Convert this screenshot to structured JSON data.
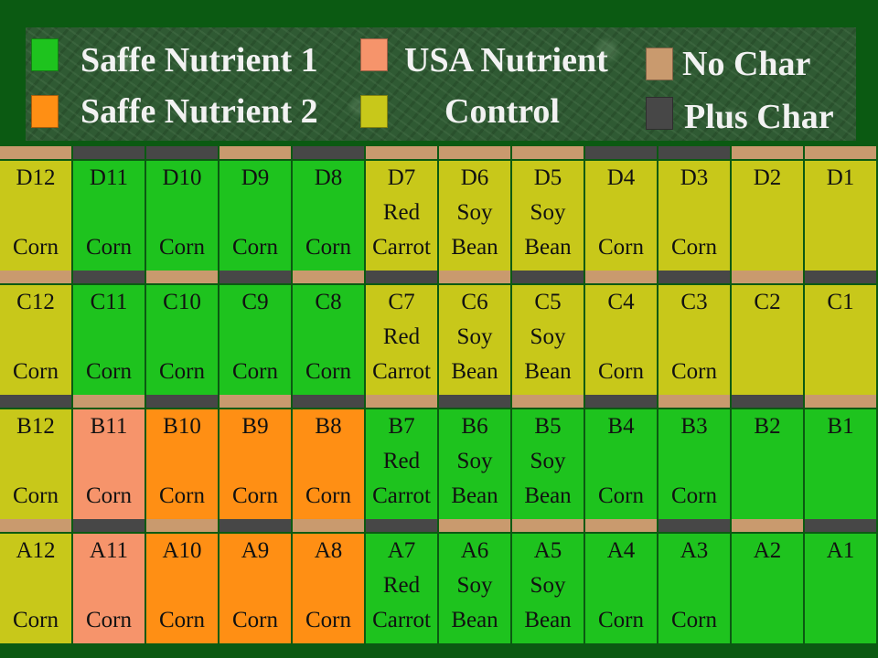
{
  "colors": {
    "saffe1": "#1ec31e",
    "saffe2": "#ff8f14",
    "usa": "#f6946b",
    "control": "#c8c81a",
    "no_char": "#c99a6e",
    "plus_char": "#474747",
    "background": "#0b5a12"
  },
  "legend": {
    "saffe1": "Saffe Nutrient 1",
    "saffe2": "Saffe Nutrient 2",
    "usa": "USA Nutrient",
    "control": "Control",
    "no_char": "No Char",
    "plus_char": "Plus Char"
  },
  "rows": [
    {
      "id": "D",
      "char": [
        "no_char",
        "plus_char",
        "plus_char",
        "no_char",
        "plus_char",
        "no_char",
        "no_char",
        "no_char",
        "plus_char",
        "plus_char",
        "no_char",
        "no_char"
      ],
      "cells": [
        {
          "id": "D12",
          "treatment": "control",
          "crop1": "",
          "crop2": "Corn"
        },
        {
          "id": "D11",
          "treatment": "saffe1",
          "crop1": "",
          "crop2": "Corn"
        },
        {
          "id": "D10",
          "treatment": "saffe1",
          "crop1": "",
          "crop2": "Corn"
        },
        {
          "id": "D9",
          "treatment": "saffe1",
          "crop1": "",
          "crop2": "Corn"
        },
        {
          "id": "D8",
          "treatment": "saffe1",
          "crop1": "",
          "crop2": "Corn"
        },
        {
          "id": "D7",
          "treatment": "control",
          "crop1": "Red",
          "crop2": "Carrot"
        },
        {
          "id": "D6",
          "treatment": "control",
          "crop1": "Soy",
          "crop2": "Bean"
        },
        {
          "id": "D5",
          "treatment": "control",
          "crop1": "Soy",
          "crop2": "Bean"
        },
        {
          "id": "D4",
          "treatment": "control",
          "crop1": "",
          "crop2": "Corn"
        },
        {
          "id": "D3",
          "treatment": "control",
          "crop1": "",
          "crop2": "Corn"
        },
        {
          "id": "D2",
          "treatment": "control",
          "crop1": "",
          "crop2": ""
        },
        {
          "id": "D1",
          "treatment": "control",
          "crop1": "",
          "crop2": ""
        }
      ]
    },
    {
      "id": "C",
      "char": [
        "no_char",
        "plus_char",
        "no_char",
        "plus_char",
        "no_char",
        "plus_char",
        "no_char",
        "plus_char",
        "no_char",
        "plus_char",
        "no_char",
        "plus_char"
      ],
      "cells": [
        {
          "id": "C12",
          "treatment": "control",
          "crop1": "",
          "crop2": "Corn"
        },
        {
          "id": "C11",
          "treatment": "saffe1",
          "crop1": "",
          "crop2": "Corn"
        },
        {
          "id": "C10",
          "treatment": "saffe1",
          "crop1": "",
          "crop2": "Corn"
        },
        {
          "id": "C9",
          "treatment": "saffe1",
          "crop1": "",
          "crop2": "Corn"
        },
        {
          "id": "C8",
          "treatment": "saffe1",
          "crop1": "",
          "crop2": "Corn"
        },
        {
          "id": "C7",
          "treatment": "control",
          "crop1": "Red",
          "crop2": "Carrot"
        },
        {
          "id": "C6",
          "treatment": "control",
          "crop1": "Soy",
          "crop2": "Bean"
        },
        {
          "id": "C5",
          "treatment": "control",
          "crop1": "Soy",
          "crop2": "Bean"
        },
        {
          "id": "C4",
          "treatment": "control",
          "crop1": "",
          "crop2": "Corn"
        },
        {
          "id": "C3",
          "treatment": "control",
          "crop1": "",
          "crop2": "Corn"
        },
        {
          "id": "C2",
          "treatment": "control",
          "crop1": "",
          "crop2": ""
        },
        {
          "id": "C1",
          "treatment": "control",
          "crop1": "",
          "crop2": ""
        }
      ]
    },
    {
      "id": "B",
      "char": [
        "plus_char",
        "no_char",
        "plus_char",
        "no_char",
        "plus_char",
        "no_char",
        "plus_char",
        "no_char",
        "plus_char",
        "no_char",
        "plus_char",
        "no_char"
      ],
      "cells": [
        {
          "id": "B12",
          "treatment": "control",
          "crop1": "",
          "crop2": "Corn"
        },
        {
          "id": "B11",
          "treatment": "usa",
          "crop1": "",
          "crop2": "Corn"
        },
        {
          "id": "B10",
          "treatment": "saffe2",
          "crop1": "",
          "crop2": "Corn"
        },
        {
          "id": "B9",
          "treatment": "saffe2",
          "crop1": "",
          "crop2": "Corn"
        },
        {
          "id": "B8",
          "treatment": "saffe2",
          "crop1": "",
          "crop2": "Corn"
        },
        {
          "id": "B7",
          "treatment": "saffe1",
          "crop1": "Red",
          "crop2": "Carrot"
        },
        {
          "id": "B6",
          "treatment": "saffe1",
          "crop1": "Soy",
          "crop2": "Bean"
        },
        {
          "id": "B5",
          "treatment": "saffe1",
          "crop1": "Soy",
          "crop2": "Bean"
        },
        {
          "id": "B4",
          "treatment": "saffe1",
          "crop1": "",
          "crop2": "Corn"
        },
        {
          "id": "B3",
          "treatment": "saffe1",
          "crop1": "",
          "crop2": "Corn"
        },
        {
          "id": "B2",
          "treatment": "saffe1",
          "crop1": "",
          "crop2": ""
        },
        {
          "id": "B1",
          "treatment": "saffe1",
          "crop1": "",
          "crop2": ""
        }
      ]
    },
    {
      "id": "A",
      "char": [
        "no_char",
        "plus_char",
        "no_char",
        "plus_char",
        "no_char",
        "plus_char",
        "no_char",
        "no_char",
        "no_char",
        "plus_char",
        "no_char",
        "plus_char"
      ],
      "cells": [
        {
          "id": "A12",
          "treatment": "control",
          "crop1": "",
          "crop2": "Corn"
        },
        {
          "id": "A11",
          "treatment": "usa",
          "crop1": "",
          "crop2": "Corn"
        },
        {
          "id": "A10",
          "treatment": "saffe2",
          "crop1": "",
          "crop2": "Corn"
        },
        {
          "id": "A9",
          "treatment": "saffe2",
          "crop1": "",
          "crop2": "Corn"
        },
        {
          "id": "A8",
          "treatment": "saffe2",
          "crop1": "",
          "crop2": "Corn"
        },
        {
          "id": "A7",
          "treatment": "saffe1",
          "crop1": "Red",
          "crop2": "Carrot"
        },
        {
          "id": "A6",
          "treatment": "saffe1",
          "crop1": "Soy",
          "crop2": "Bean"
        },
        {
          "id": "A5",
          "treatment": "saffe1",
          "crop1": "Soy",
          "crop2": "Bean"
        },
        {
          "id": "A4",
          "treatment": "saffe1",
          "crop1": "",
          "crop2": "Corn"
        },
        {
          "id": "A3",
          "treatment": "saffe1",
          "crop1": "",
          "crop2": "Corn"
        },
        {
          "id": "A2",
          "treatment": "saffe1",
          "crop1": "",
          "crop2": ""
        },
        {
          "id": "A1",
          "treatment": "saffe1",
          "crop1": "",
          "crop2": ""
        }
      ]
    }
  ]
}
